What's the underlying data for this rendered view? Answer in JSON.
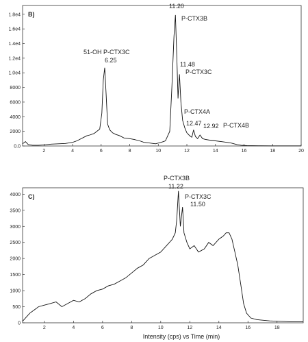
{
  "chart_data": [
    {
      "type": "line",
      "panel_label": "B)",
      "title": "",
      "xlabel": "",
      "ylabel": "",
      "xlim": [
        0.5,
        20
      ],
      "ylim": [
        0,
        19200
      ],
      "x_ticks": [
        2,
        4,
        6,
        8,
        10,
        12,
        14,
        16,
        18,
        20
      ],
      "x_tick_labels": [
        "2",
        "4",
        "6",
        "8",
        "10",
        "12",
        "14",
        "16",
        "18",
        "20"
      ],
      "y_ticks": [
        0,
        2000,
        4000,
        6000,
        8000,
        10000,
        12000,
        14000,
        16000,
        18000
      ],
      "y_tick_labels": [
        "0.0",
        "2000",
        "4000",
        "6000",
        "8000",
        "1.0e4",
        "1.2e4",
        "1.4e4",
        "1.6e4",
        "1.8e4"
      ],
      "grid": false,
      "legend": "none",
      "series": [
        {
          "x": [
            0.5,
            0.7,
            0.9,
            1.2,
            1.6,
            2.0,
            2.5,
            3.0,
            3.5,
            4.0,
            4.3,
            4.5,
            4.8,
            5.0,
            5.2,
            5.5,
            5.7,
            5.9,
            6.05,
            6.15,
            6.25,
            6.35,
            6.45,
            6.6,
            6.8,
            7.0,
            7.3,
            7.6,
            8.0,
            8.3,
            8.7,
            9.0,
            9.4,
            9.8,
            10.2,
            10.5,
            10.8,
            10.95,
            11.1,
            11.2,
            11.3,
            11.38,
            11.48,
            11.58,
            11.7,
            11.85,
            12.0,
            12.2,
            12.35,
            12.47,
            12.6,
            12.75,
            12.92,
            13.1,
            13.3,
            13.6,
            14.0,
            14.4,
            14.8,
            15.1,
            15.3,
            15.5,
            15.8,
            16.2,
            17.0,
            18.0,
            19.0,
            20.0
          ],
          "y": [
            300,
            600,
            200,
            100,
            100,
            150,
            250,
            300,
            350,
            500,
            700,
            900,
            1200,
            1400,
            1500,
            1700,
            2000,
            2300,
            4500,
            9000,
            10700,
            7000,
            3000,
            2200,
            1800,
            1600,
            1400,
            1100,
            1000,
            900,
            700,
            500,
            400,
            300,
            500,
            700,
            2000,
            8000,
            15000,
            17900,
            12000,
            6500,
            9800,
            6000,
            3500,
            2500,
            1800,
            1400,
            1200,
            2200,
            1300,
            1000,
            1500,
            1000,
            900,
            800,
            700,
            600,
            500,
            400,
            300,
            200,
            100,
            50,
            30,
            20,
            20,
            20
          ]
        }
      ],
      "annotations": [
        {
          "label": "51-OH P-CTX3C",
          "x": 6.25
        },
        {
          "label": "6.25",
          "x": 6.25
        },
        {
          "label": "11.20",
          "x": 11.2
        },
        {
          "label": "P-CTX3B",
          "x": 11.2
        },
        {
          "label": "11.48",
          "x": 11.48
        },
        {
          "label": "P-CTX3C",
          "x": 11.48
        },
        {
          "label": "P-CTX4A",
          "x": 12.47
        },
        {
          "label": "12.47",
          "x": 12.47
        },
        {
          "label": "12.92",
          "x": 12.92
        },
        {
          "label": "P-CTX4B",
          "x": 12.92
        }
      ]
    },
    {
      "type": "line",
      "panel_label": "C)",
      "title": "",
      "xlabel": "Intensity (cps) vs Time (min)",
      "ylabel": "",
      "xlim": [
        0.5,
        19.8
      ],
      "ylim": [
        0,
        4200
      ],
      "x_ticks": [
        2,
        4,
        6,
        8,
        10,
        12,
        14,
        16,
        18
      ],
      "x_tick_labels": [
        "2",
        "4",
        "6",
        "8",
        "10",
        "12",
        "14",
        "16",
        "18"
      ],
      "y_ticks": [
        0,
        500,
        1000,
        1500,
        2000,
        2500,
        3000,
        3500,
        4000
      ],
      "y_tick_labels": [
        "0",
        "500",
        "1000",
        "1500",
        "2000",
        "2500",
        "3000",
        "3500",
        "4000"
      ],
      "grid": false,
      "legend": "none",
      "series": [
        {
          "x": [
            0.5,
            0.8,
            1.0,
            1.3,
            1.6,
            2.0,
            2.4,
            2.8,
            3.2,
            3.6,
            4.0,
            4.4,
            4.8,
            5.2,
            5.6,
            6.0,
            6.4,
            6.8,
            7.2,
            7.6,
            8.0,
            8.4,
            8.8,
            9.2,
            9.6,
            10.0,
            10.4,
            10.8,
            11.0,
            11.1,
            11.22,
            11.35,
            11.5,
            11.6,
            11.8,
            12.0,
            12.3,
            12.6,
            13.0,
            13.3,
            13.6,
            14.0,
            14.3,
            14.5,
            14.7,
            14.9,
            15.1,
            15.3,
            15.5,
            15.7,
            15.9,
            16.2,
            16.6,
            17.0,
            17.5,
            18.0,
            18.5,
            19.0,
            19.8
          ],
          "y": [
            50,
            200,
            300,
            400,
            500,
            550,
            600,
            650,
            500,
            600,
            700,
            650,
            750,
            900,
            1000,
            1050,
            1150,
            1200,
            1300,
            1400,
            1550,
            1700,
            1800,
            2000,
            2100,
            2200,
            2400,
            2600,
            2800,
            3200,
            4100,
            3000,
            3600,
            2800,
            2500,
            2300,
            2400,
            2200,
            2300,
            2500,
            2400,
            2600,
            2700,
            2800,
            2800,
            2600,
            2200,
            1800,
            1200,
            600,
            300,
            150,
            100,
            80,
            60,
            50,
            40,
            30,
            30
          ]
        }
      ],
      "annotations": [
        {
          "label": "P-CTX3B",
          "x": 11.22
        },
        {
          "label": "11.22",
          "x": 11.22
        },
        {
          "label": "P-CTX3C",
          "x": 11.5
        },
        {
          "label": "11.50",
          "x": 11.5
        }
      ]
    }
  ]
}
